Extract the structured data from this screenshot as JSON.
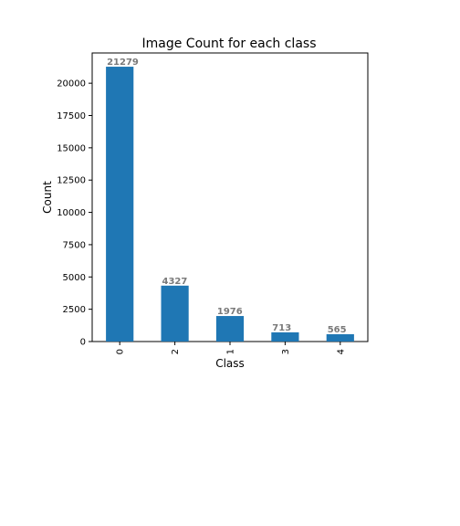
{
  "chart_data": {
    "type": "bar",
    "title": "Image Count for each class",
    "xlabel": "Class",
    "ylabel": "Count",
    "categories": [
      "0",
      "2",
      "1",
      "3",
      "4"
    ],
    "values": [
      21279,
      4327,
      1976,
      713,
      565
    ],
    "data_labels": [
      "21279",
      "4327",
      "1976",
      "713",
      "565"
    ],
    "ylim": [
      0,
      22342.95
    ],
    "yticks": [
      0,
      2500,
      5000,
      7500,
      10000,
      12500,
      15000,
      17500,
      20000
    ],
    "ytick_labels": [
      "0",
      "2500",
      "5000",
      "7500",
      "10000",
      "12500",
      "15000",
      "17500",
      "20000"
    ],
    "x_tick_rotation": "vertical",
    "grid": false,
    "legend": "none",
    "bar_color": "#1f77b4",
    "data_label_color": "#7a7a7a"
  }
}
